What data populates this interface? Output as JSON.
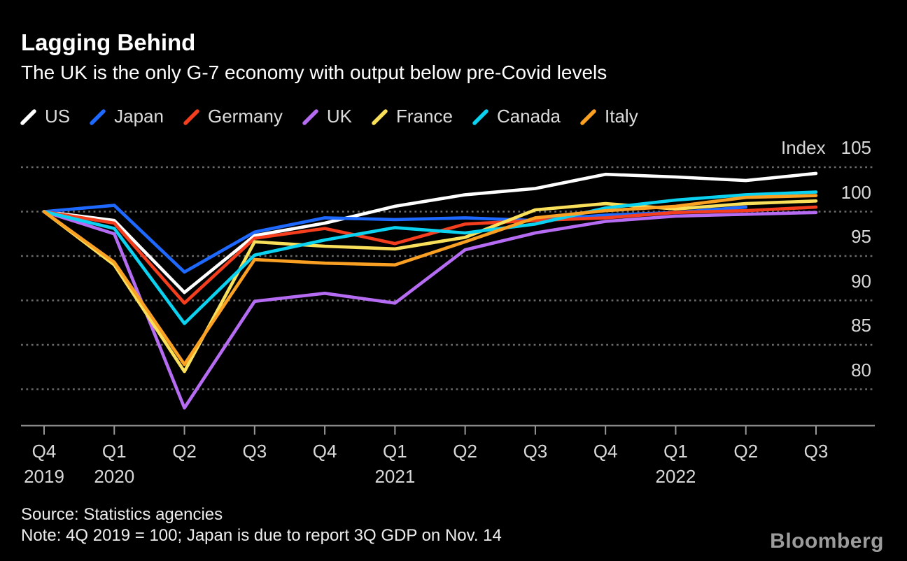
{
  "header": {
    "title": "Lagging Behind",
    "subtitle": "The UK is the only G-7 economy with output below pre-Covid levels"
  },
  "axis": {
    "unit_label": "Index",
    "y_ticks": [
      105,
      100,
      95,
      90,
      85,
      80
    ],
    "x_ticks": [
      {
        "quarter": "Q4",
        "year": "2019"
      },
      {
        "quarter": "Q1",
        "year": "2020"
      },
      {
        "quarter": "Q2",
        "year": ""
      },
      {
        "quarter": "Q3",
        "year": ""
      },
      {
        "quarter": "Q4",
        "year": ""
      },
      {
        "quarter": "Q1",
        "year": "2021"
      },
      {
        "quarter": "Q2",
        "year": ""
      },
      {
        "quarter": "Q3",
        "year": ""
      },
      {
        "quarter": "Q4",
        "year": ""
      },
      {
        "quarter": "Q1",
        "year": "2022"
      },
      {
        "quarter": "Q2",
        "year": ""
      },
      {
        "quarter": "Q3",
        "year": ""
      }
    ]
  },
  "chart_data": {
    "type": "line",
    "title": "Lagging Behind",
    "subtitle": "The UK is the only G-7 economy with output below pre-Covid levels",
    "x_categories": [
      "Q4 2019",
      "Q1 2020",
      "Q2 2020",
      "Q3 2020",
      "Q4 2020",
      "Q1 2021",
      "Q2 2021",
      "Q3 2021",
      "Q4 2021",
      "Q1 2022",
      "Q2 2022",
      "Q3 2022"
    ],
    "ylabel": "Index",
    "ylim": [
      76,
      106
    ],
    "y_ticks": [
      105,
      100,
      95,
      90,
      85,
      80
    ],
    "grid": "horizontal-dotted",
    "legend_position": "top",
    "baseline_note": "4Q 2019 = 100",
    "series": [
      {
        "name": "US",
        "color": "#ffffff",
        "values": [
          100,
          99.0,
          90.9,
          97.3,
          98.7,
          100.6,
          101.9,
          102.6,
          104.2,
          103.9,
          103.5,
          104.3
        ]
      },
      {
        "name": "Japan",
        "color": "#1e69ff",
        "values": [
          100,
          100.7,
          93.2,
          97.7,
          99.3,
          99.1,
          99.3,
          99.0,
          99.6,
          99.9,
          100.5,
          null
        ]
      },
      {
        "name": "Germany",
        "color": "#f43e1e",
        "values": [
          100,
          98.7,
          89.7,
          97.0,
          98.1,
          96.4,
          98.6,
          99.0,
          99.3,
          99.9,
          100.1,
          100.5
        ]
      },
      {
        "name": "UK",
        "color": "#b66cf2",
        "values": [
          100,
          97.5,
          77.9,
          89.9,
          90.8,
          89.7,
          95.7,
          97.6,
          98.9,
          99.5,
          99.7,
          99.9
        ]
      },
      {
        "name": "France",
        "color": "#fae05a",
        "values": [
          100,
          94.0,
          82.0,
          96.6,
          96.1,
          95.8,
          97.1,
          100.2,
          100.9,
          100.3,
          100.9,
          101.2
        ]
      },
      {
        "name": "Canada",
        "color": "#0ad2f0",
        "values": [
          100,
          98.1,
          87.4,
          95.1,
          96.8,
          98.2,
          97.6,
          98.6,
          100.4,
          101.3,
          101.9,
          102.2
        ]
      },
      {
        "name": "Italy",
        "color": "#faa023",
        "values": [
          100,
          94.3,
          82.8,
          94.6,
          94.2,
          94.0,
          96.6,
          99.3,
          100.1,
          100.6,
          101.6,
          101.8
        ]
      }
    ]
  },
  "style": {
    "background": "#000000",
    "grid_color": "#6a6a6a",
    "axis_color": "#999999",
    "label_color": "#d8d8d8"
  },
  "footer": {
    "source": "Source: Statistics agencies",
    "note": "Note: 4Q 2019 = 100; Japan is due to report 3Q GDP on Nov. 14",
    "brand": "Bloomberg"
  }
}
